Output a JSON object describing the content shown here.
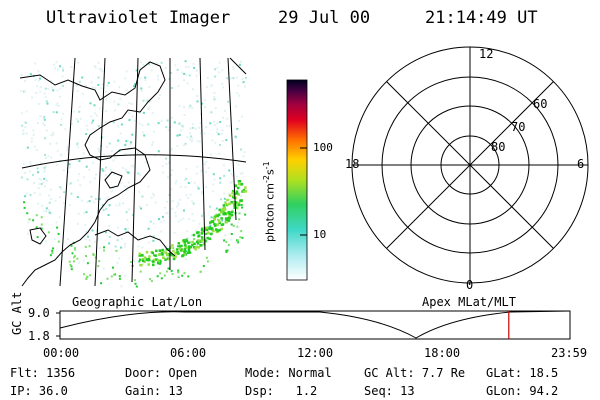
{
  "header": {
    "title": "Ultraviolet Imager",
    "date": "29 Jul 00",
    "time": "21:14:49 UT"
  },
  "colorbar": {
    "unit": "photon cm",
    "unit_sup1": "-2",
    "unit_mid": "s",
    "unit_sup2": "-1",
    "tick_high": "100",
    "tick_low": "10"
  },
  "polar": {
    "top": "12",
    "left": "18",
    "right": "6",
    "bottom": "0",
    "r60": "60",
    "r70": "70",
    "r80": "80"
  },
  "labels": {
    "geo": "Geographic Lat/Lon",
    "apex": "Apex MLat/MLT"
  },
  "orbit": {
    "ylabel": "GC Alt",
    "y_high": "9.0",
    "y_low": "1.8",
    "ticks": [
      "00:00",
      "06:00",
      "12:00",
      "18:00",
      "23:59"
    ],
    "current_time_fraction": 0.88
  },
  "info": {
    "flt_label": "Flt:",
    "flt": "1356",
    "ip_label": "IP:",
    "ip": "36.0",
    "door_label": "Door:",
    "door": "Open",
    "gain_label": "Gain:",
    "gain": "13",
    "mode_label": "Mode:",
    "mode": "Normal",
    "dsp_label": "Dsp:",
    "dsp": "1.2",
    "gcalt_label": "GC Alt:",
    "gcalt": "7.7 Re",
    "seq_label": "Seq:",
    "seq": "13",
    "glat_label": "GLat:",
    "glat": "18.5",
    "glon_label": "GLon:",
    "glon": "94.2"
  },
  "colors": {
    "grid": "#000000",
    "marker": "#cc0000",
    "emission_low": "#e8f4f8",
    "emission_high": "#22cc22"
  }
}
